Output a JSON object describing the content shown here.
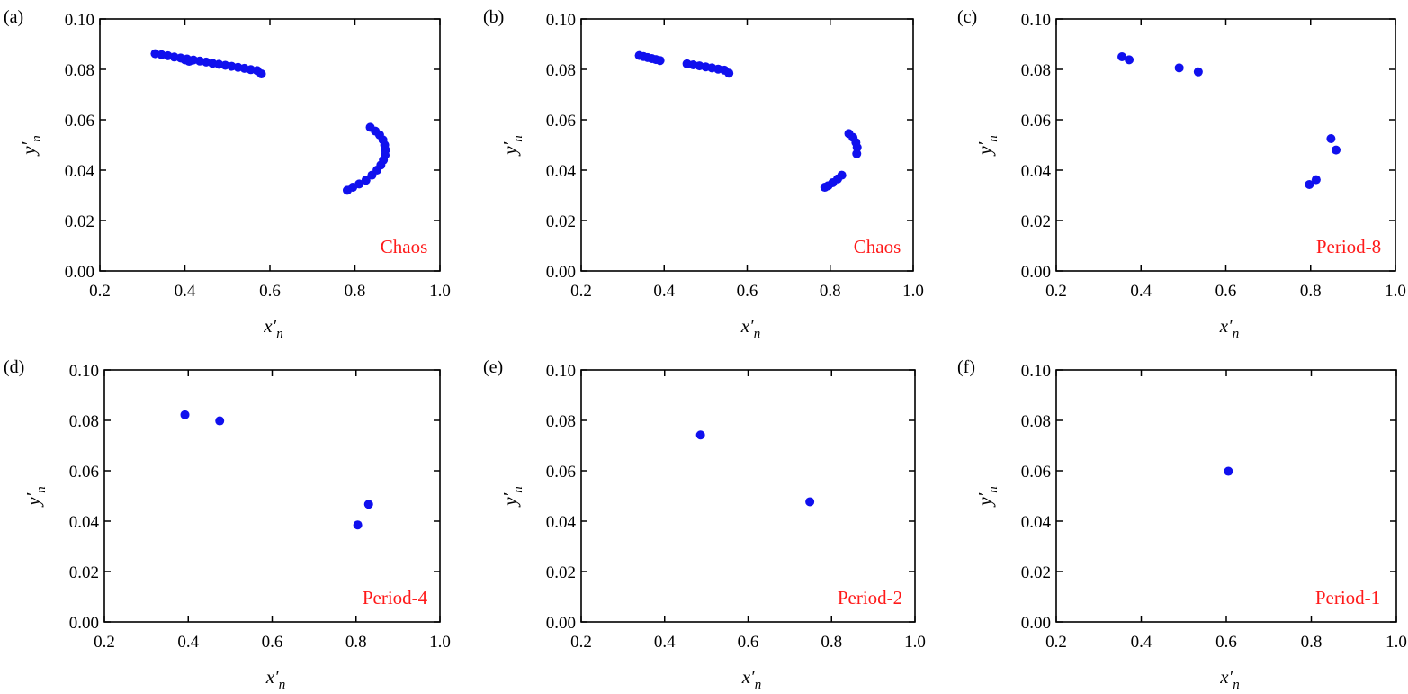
{
  "chart_data": [
    {
      "type": "scatter",
      "panel_label": "(a)",
      "annotation": "Chaos",
      "xlabel": "x′n",
      "ylabel": "y′n",
      "xlim": [
        0.2,
        1.0
      ],
      "ylim": [
        0.0,
        0.1
      ],
      "xticks": [
        "0.2",
        "0.4",
        "0.6",
        "0.8",
        "1.0"
      ],
      "yticks": [
        "0.00",
        "0.02",
        "0.04",
        "0.06",
        "0.08",
        "0.10"
      ],
      "marker_color": "#1010ee",
      "points": [
        [
          0.33,
          0.0862
        ],
        [
          0.345,
          0.0858
        ],
        [
          0.36,
          0.0854
        ],
        [
          0.375,
          0.0849
        ],
        [
          0.39,
          0.0845
        ],
        [
          0.405,
          0.0841
        ],
        [
          0.42,
          0.0837
        ],
        [
          0.435,
          0.0833
        ],
        [
          0.45,
          0.0829
        ],
        [
          0.465,
          0.0824
        ],
        [
          0.48,
          0.082
        ],
        [
          0.495,
          0.0816
        ],
        [
          0.51,
          0.0812
        ],
        [
          0.525,
          0.0808
        ],
        [
          0.54,
          0.0804
        ],
        [
          0.555,
          0.0799
        ],
        [
          0.57,
          0.0795
        ],
        [
          0.58,
          0.0782
        ],
        [
          0.4,
          0.0838
        ],
        [
          0.41,
          0.0832
        ],
        [
          0.836,
          0.057
        ],
        [
          0.848,
          0.0555
        ],
        [
          0.858,
          0.054
        ],
        [
          0.866,
          0.052
        ],
        [
          0.87,
          0.05
        ],
        [
          0.872,
          0.048
        ],
        [
          0.871,
          0.046
        ],
        [
          0.867,
          0.044
        ],
        [
          0.861,
          0.042
        ],
        [
          0.852,
          0.04
        ],
        [
          0.84,
          0.038
        ],
        [
          0.826,
          0.036
        ],
        [
          0.81,
          0.0345
        ],
        [
          0.795,
          0.0332
        ],
        [
          0.782,
          0.032
        ]
      ]
    },
    {
      "type": "scatter",
      "panel_label": "(b)",
      "annotation": "Chaos",
      "xlabel": "x′n",
      "ylabel": "y′n",
      "xlim": [
        0.2,
        1.0
      ],
      "ylim": [
        0.0,
        0.1
      ],
      "xticks": [
        "0.2",
        "0.4",
        "0.6",
        "0.8",
        "1.0"
      ],
      "yticks": [
        "0.00",
        "0.02",
        "0.04",
        "0.06",
        "0.08",
        "0.10"
      ],
      "marker_color": "#1010ee",
      "points": [
        [
          0.34,
          0.0855
        ],
        [
          0.35,
          0.0851
        ],
        [
          0.36,
          0.0847
        ],
        [
          0.37,
          0.0843
        ],
        [
          0.38,
          0.0839
        ],
        [
          0.39,
          0.0835
        ],
        [
          0.455,
          0.0822
        ],
        [
          0.47,
          0.0818
        ],
        [
          0.485,
          0.0814
        ],
        [
          0.5,
          0.081
        ],
        [
          0.515,
          0.0806
        ],
        [
          0.53,
          0.0801
        ],
        [
          0.545,
          0.0797
        ],
        [
          0.556,
          0.0785
        ],
        [
          0.845,
          0.0545
        ],
        [
          0.855,
          0.053
        ],
        [
          0.862,
          0.051
        ],
        [
          0.865,
          0.049
        ],
        [
          0.864,
          0.0465
        ],
        [
          0.828,
          0.038
        ],
        [
          0.818,
          0.0365
        ],
        [
          0.806,
          0.035
        ],
        [
          0.795,
          0.0338
        ],
        [
          0.787,
          0.0332
        ]
      ]
    },
    {
      "type": "scatter",
      "panel_label": "(c)",
      "annotation": "Period-8",
      "xlabel": "x′n",
      "ylabel": "y′n",
      "xlim": [
        0.2,
        1.0
      ],
      "ylim": [
        0.0,
        0.1
      ],
      "xticks": [
        "0.2",
        "0.4",
        "0.6",
        "0.8",
        "1.0"
      ],
      "yticks": [
        "0.00",
        "0.02",
        "0.04",
        "0.06",
        "0.08",
        "0.10"
      ],
      "marker_color": "#1010ee",
      "points": [
        [
          0.355,
          0.085
        ],
        [
          0.372,
          0.0838
        ],
        [
          0.49,
          0.0806
        ],
        [
          0.535,
          0.079
        ],
        [
          0.848,
          0.0525
        ],
        [
          0.86,
          0.048
        ],
        [
          0.813,
          0.0362
        ],
        [
          0.797,
          0.0343
        ]
      ]
    },
    {
      "type": "scatter",
      "panel_label": "(d)",
      "annotation": "Period-4",
      "xlabel": "x′n",
      "ylabel": "y′n",
      "xlim": [
        0.2,
        1.0
      ],
      "ylim": [
        0.0,
        0.1
      ],
      "xticks": [
        "0.2",
        "0.4",
        "0.6",
        "0.8",
        "1.0"
      ],
      "yticks": [
        "0.00",
        "0.02",
        "0.04",
        "0.06",
        "0.08",
        "0.10"
      ],
      "marker_color": "#1010ee",
      "points": [
        [
          0.392,
          0.0822
        ],
        [
          0.475,
          0.0798
        ],
        [
          0.83,
          0.0467
        ],
        [
          0.804,
          0.0385
        ]
      ]
    },
    {
      "type": "scatter",
      "panel_label": "(e)",
      "annotation": "Period-2",
      "xlabel": "x′n",
      "ylabel": "y′n",
      "xlim": [
        0.2,
        1.0
      ],
      "ylim": [
        0.0,
        0.1
      ],
      "xticks": [
        "0.2",
        "0.4",
        "0.6",
        "0.8",
        "1.0"
      ],
      "yticks": [
        "0.00",
        "0.02",
        "0.04",
        "0.06",
        "0.08",
        "0.10"
      ],
      "marker_color": "#1010ee",
      "points": [
        [
          0.486,
          0.0742
        ],
        [
          0.748,
          0.0477
        ]
      ]
    },
    {
      "type": "scatter",
      "panel_label": "(f)",
      "annotation": "Period-1",
      "xlabel": "x′n",
      "ylabel": "y′n",
      "xlim": [
        0.2,
        1.0
      ],
      "ylim": [
        0.0,
        0.1
      ],
      "xticks": [
        "0.2",
        "0.4",
        "0.6",
        "0.8",
        "1.0"
      ],
      "yticks": [
        "0.00",
        "0.02",
        "0.04",
        "0.06",
        "0.08",
        "0.10"
      ],
      "marker_color": "#1010ee",
      "points": [
        [
          0.605,
          0.0598
        ]
      ]
    }
  ],
  "annotation_color": "#ff1a1a"
}
